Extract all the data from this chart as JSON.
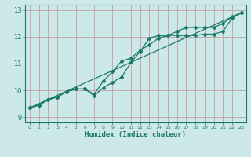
{
  "xlabel": "Humidex (Indice chaleur)",
  "ylabel": "",
  "xlim": [
    -0.5,
    23.5
  ],
  "ylim": [
    8.8,
    13.2
  ],
  "yticks": [
    9,
    10,
    11,
    12,
    13
  ],
  "xticks": [
    0,
    1,
    2,
    3,
    4,
    5,
    6,
    7,
    8,
    9,
    10,
    11,
    12,
    13,
    14,
    15,
    16,
    17,
    18,
    19,
    20,
    21,
    22,
    23
  ],
  "bg_color": "#cce8e8",
  "grid_color": "#c0a0a0",
  "line_color": "#1a7a6a",
  "series1_x": [
    0,
    1,
    2,
    3,
    4,
    5,
    6,
    7,
    8,
    9,
    10,
    11,
    12,
    13,
    14,
    15,
    16,
    17,
    18,
    19,
    20,
    21,
    22,
    23
  ],
  "series1_y": [
    9.35,
    9.45,
    9.65,
    9.75,
    9.95,
    10.05,
    10.05,
    9.8,
    10.1,
    10.3,
    10.5,
    11.05,
    11.45,
    11.95,
    12.05,
    12.05,
    12.05,
    12.05,
    12.05,
    12.1,
    12.1,
    12.2,
    12.7,
    12.9
  ],
  "series2_x": [
    0,
    1,
    2,
    3,
    4,
    5,
    6,
    7,
    8,
    9,
    10,
    11,
    12,
    13,
    14,
    15,
    16,
    17,
    18,
    19,
    20,
    21,
    22,
    23
  ],
  "series2_y": [
    9.35,
    9.45,
    9.65,
    9.75,
    9.95,
    10.05,
    10.05,
    9.85,
    10.35,
    10.7,
    11.1,
    11.2,
    11.5,
    11.7,
    11.95,
    12.05,
    12.2,
    12.35,
    12.35,
    12.35,
    12.35,
    12.5,
    12.75,
    12.9
  ],
  "series3_x": [
    0,
    23
  ],
  "series3_y": [
    9.35,
    12.9
  ]
}
